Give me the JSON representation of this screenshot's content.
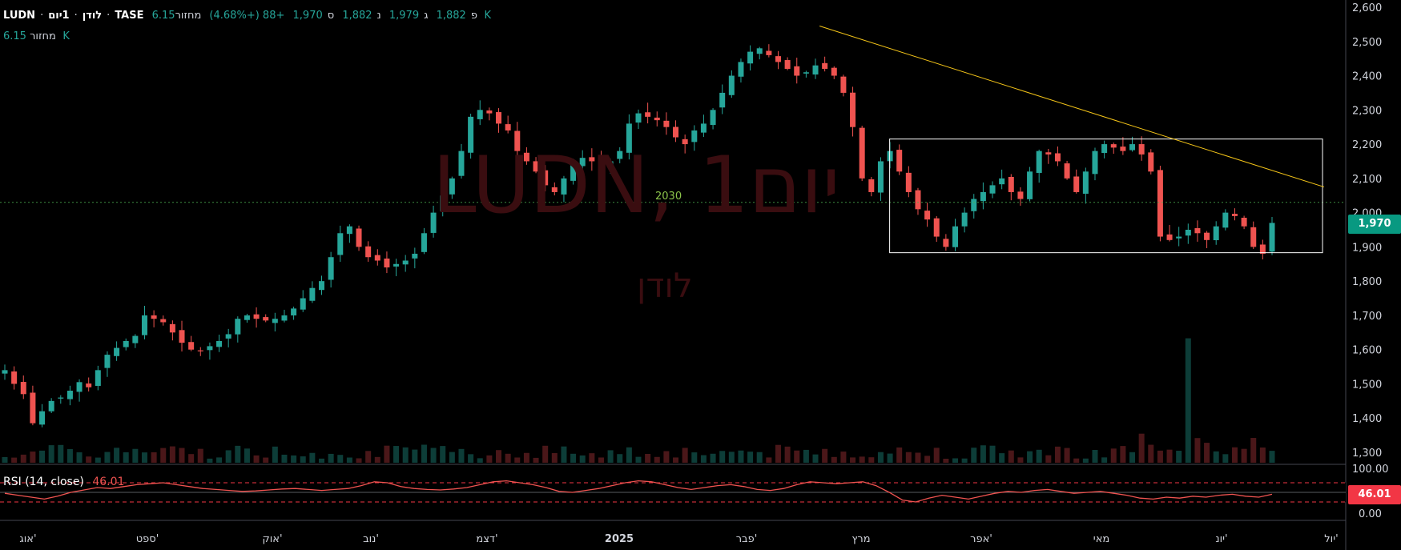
{
  "header": {
    "symbol": "LUDN",
    "name": "לודן",
    "interval": "1יום",
    "exchange": "TASE",
    "sep": "·",
    "open_label": "פ",
    "open": "1,882",
    "high_label": "ג",
    "high": "1,979",
    "low_label": "נ",
    "low": "1,882",
    "close_label": "ס",
    "close": "1,970",
    "change": "+88 (+4.68%)",
    "volume_label": "מחזור",
    "volume": "6.15 K"
  },
  "volume_legend": {
    "label": "מחזור",
    "value": "6.15 K"
  },
  "watermark": {
    "title": "LUDN, 1יום",
    "subtitle": "לודן"
  },
  "price_tag": "1,970",
  "level_label": "2030",
  "rsi": {
    "label": "RSI (14, close)",
    "value": "46.01",
    "upper": "100.00",
    "lower": "0.00"
  },
  "colors": {
    "up": "#26a69a",
    "down": "#ef5350",
    "trendline": "#f5c518",
    "box": "#ffffff",
    "rsi": "#ef5350"
  },
  "chart_data": {
    "type": "candlestick",
    "ylim": [
      1260,
      2610
    ],
    "y_ticks": [
      "2,600",
      "2,500",
      "2,400",
      "2,300",
      "2,200",
      "2,100",
      "2,000",
      "1,900",
      "1,800",
      "1,700",
      "1,600",
      "1,500",
      "1,400",
      "1,300"
    ],
    "y_tick_values": [
      2600,
      2500,
      2400,
      2300,
      2200,
      2100,
      2000,
      1900,
      1800,
      1700,
      1600,
      1500,
      1400,
      1300
    ],
    "x_ticks": [
      "אוג'",
      "ספט'",
      "אוק'",
      "נוב'",
      "דצמ'",
      "2025",
      "פבר'",
      "מרץ",
      "אפר'",
      "מאי",
      "יונ'",
      "יול'"
    ],
    "trendline": {
      "from": [
        0.585,
        2545
      ],
      "to": [
        0.945,
        2075
      ]
    },
    "box": {
      "x0": 0.635,
      "x1": 0.944,
      "y_high": 2215,
      "y_low": 1883
    },
    "level": 2030,
    "path": [
      1540,
      1500,
      1470,
      1385,
      1420,
      1450,
      1460,
      1480,
      1505,
      1490,
      1540,
      1585,
      1605,
      1625,
      1640,
      1700,
      1690,
      1680,
      1650,
      1620,
      1600,
      1595,
      1610,
      1625,
      1645,
      1690,
      1700,
      1690,
      1685,
      1690,
      1700,
      1720,
      1750,
      1780,
      1800,
      1870,
      1940,
      1960,
      1900,
      1870,
      1860,
      1840,
      1850,
      1860,
      1880,
      1940,
      2000,
      2050,
      2100,
      2180,
      2280,
      2300,
      2290,
      2260,
      2240,
      2180,
      2150,
      2120,
      2080,
      2060,
      2100,
      2140,
      2160,
      2150,
      2140,
      2150,
      2180,
      2260,
      2290,
      2280,
      2270,
      2250,
      2220,
      2200,
      2240,
      2260,
      2300,
      2350,
      2400,
      2440,
      2470,
      2480,
      2460,
      2440,
      2420,
      2400,
      2410,
      2430,
      2420,
      2400,
      2350,
      2250,
      2100,
      2060,
      2150,
      2180,
      2120,
      2060,
      2010,
      1980,
      1930,
      1900,
      1960,
      2000,
      2040,
      2060,
      2080,
      2100,
      2060,
      2040,
      2120,
      2180,
      2170,
      2150,
      2100,
      2060,
      2120,
      2180,
      2200,
      2190,
      2180,
      2200,
      2170,
      2120,
      1930,
      1920,
      1930,
      1950,
      1940,
      1920,
      1960,
      2000,
      1990,
      1960,
      1900,
      1880,
      1970
    ],
    "volume_hint": "6.15K",
    "rsi_band": [
      30,
      70
    ],
    "rsi_series": [
      48,
      44,
      40,
      36,
      42,
      50,
      55,
      60,
      58,
      62,
      66,
      68,
      70,
      66,
      62,
      58,
      56,
      54,
      52,
      53,
      55,
      57,
      58,
      56,
      54,
      56,
      58,
      64,
      72,
      70,
      62,
      58,
      56,
      55,
      57,
      60,
      66,
      72,
      74,
      70,
      66,
      60,
      52,
      50,
      54,
      58,
      64,
      70,
      74,
      72,
      66,
      60,
      56,
      60,
      64,
      66,
      62,
      56,
      54,
      58,
      66,
      72,
      70,
      68,
      70,
      72,
      64,
      50,
      34,
      30,
      38,
      44,
      40,
      36,
      42,
      48,
      52,
      50,
      54,
      56,
      52,
      48,
      50,
      52,
      48,
      44,
      38,
      36,
      40,
      38,
      42,
      40,
      44,
      46,
      42,
      40,
      46
    ]
  }
}
